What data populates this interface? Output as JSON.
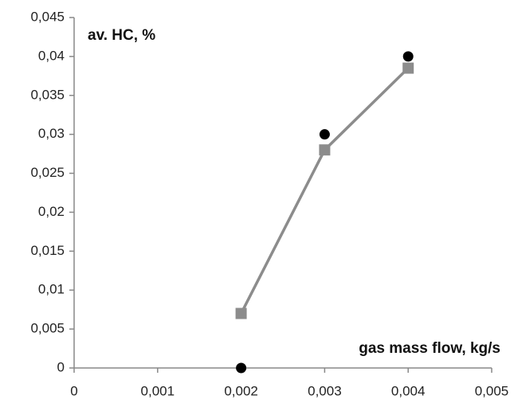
{
  "chart_data": {
    "type": "scatter",
    "annotations": [
      "av. HC, %",
      "gas mass flow, kg/s"
    ],
    "x": [
      0.002,
      0.003,
      0.004
    ],
    "series": [
      {
        "color": "#000000",
        "marker": "circle",
        "line": false,
        "values": [
          0,
          0.03,
          0.04
        ]
      },
      {
        "color": "#8c8c8c",
        "marker": "square",
        "line": true,
        "values": [
          0.007,
          0.028,
          0.0385
        ]
      }
    ],
    "xlim": [
      0,
      0.005
    ],
    "xticks": [
      0,
      {
        "value": 0.001,
        "label": "0,001"
      },
      {
        "value": 0.002,
        "label": "0,002"
      },
      {
        "value": 0.003,
        "label": "0,003"
      },
      {
        "value": 0.004,
        "label": "0,004"
      },
      {
        "value": 0.005,
        "label": "0,005"
      }
    ],
    "ylim": [
      0,
      0.045
    ],
    "yticks": [
      0,
      {
        "value": 0.005,
        "label": "0,005"
      },
      {
        "value": 0.01,
        "label": "0,01"
      },
      {
        "value": 0.015,
        "label": "0,015"
      },
      {
        "value": 0.02,
        "label": "0,02"
      },
      {
        "value": 0.025,
        "label": "0,025"
      },
      {
        "value": 0.03,
        "label": "0,03"
      },
      {
        "value": 0.035,
        "label": "0,035"
      },
      {
        "value": 0.04,
        "label": "0,04"
      },
      {
        "value": 0.045,
        "label": "0,045"
      }
    ],
    "grid": false
  }
}
